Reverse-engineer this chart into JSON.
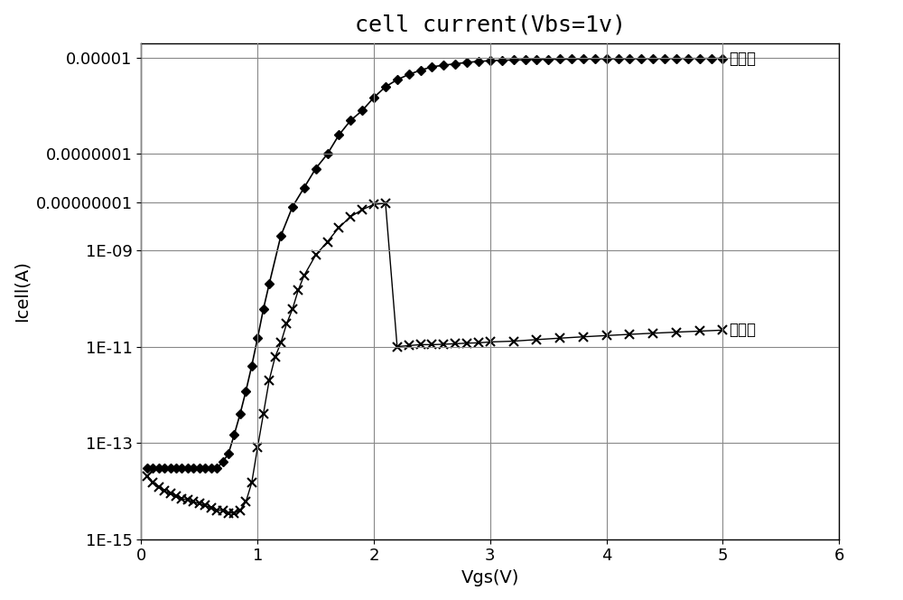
{
  "title": "cell current(Vbs=1v)",
  "xlabel": "Vgs(V)",
  "ylabel": "Icell(A)",
  "xlim": [
    0,
    6
  ],
  "ylim": [
    1e-15,
    2e-05
  ],
  "title_fontsize": 18,
  "label_fontsize": 14,
  "tick_fontsize": 13,
  "background_color": "#ffffff",
  "after_label": "编程后",
  "before_label": "编程前",
  "after_x": [
    0.05,
    0.1,
    0.15,
    0.2,
    0.25,
    0.3,
    0.35,
    0.4,
    0.45,
    0.5,
    0.55,
    0.6,
    0.65,
    0.7,
    0.75,
    0.8,
    0.85,
    0.9,
    0.95,
    1.0,
    1.05,
    1.1,
    1.2,
    1.3,
    1.4,
    1.5,
    1.6,
    1.7,
    1.8,
    1.9,
    2.0,
    2.1,
    2.2,
    2.3,
    2.4,
    2.5,
    2.6,
    2.7,
    2.8,
    2.9,
    3.0,
    3.1,
    3.2,
    3.3,
    3.4,
    3.5,
    3.6,
    3.7,
    3.8,
    3.9,
    4.0,
    4.1,
    4.2,
    4.3,
    4.4,
    4.5,
    4.6,
    4.7,
    4.8,
    4.9,
    5.0
  ],
  "after_y": [
    3e-14,
    3e-14,
    3e-14,
    3e-14,
    3e-14,
    3e-14,
    3e-14,
    3e-14,
    3e-14,
    3e-14,
    3e-14,
    3e-14,
    3e-14,
    4e-14,
    6e-14,
    1.5e-13,
    4e-13,
    1.2e-12,
    4e-12,
    1.5e-11,
    6e-11,
    2e-10,
    2e-09,
    8e-09,
    2e-08,
    5e-08,
    1e-07,
    2.5e-07,
    5e-07,
    8e-07,
    1.5e-06,
    2.5e-06,
    3.5e-06,
    4.5e-06,
    5.5e-06,
    6.5e-06,
    7e-06,
    7.5e-06,
    8e-06,
    8.4e-06,
    8.7e-06,
    8.9e-06,
    9e-06,
    9.1e-06,
    9.2e-06,
    9.3e-06,
    9.35e-06,
    9.4e-06,
    9.45e-06,
    9.5e-06,
    9.52e-06,
    9.54e-06,
    9.56e-06,
    9.58e-06,
    9.6e-06,
    9.62e-06,
    9.64e-06,
    9.66e-06,
    9.68e-06,
    9.7e-06,
    9.75e-06
  ],
  "before_x": [
    0.05,
    0.1,
    0.15,
    0.2,
    0.25,
    0.3,
    0.35,
    0.4,
    0.45,
    0.5,
    0.55,
    0.6,
    0.65,
    0.7,
    0.75,
    0.8,
    0.85,
    0.9,
    0.95,
    1.0,
    1.05,
    1.1,
    1.15,
    1.2,
    1.25,
    1.3,
    1.35,
    1.4,
    1.5,
    1.6,
    1.7,
    1.8,
    1.9,
    2.0,
    2.1,
    2.2,
    2.3,
    2.4,
    2.5,
    2.6,
    2.7,
    2.8,
    2.9,
    3.0,
    3.2,
    3.4,
    3.6,
    3.8,
    4.0,
    4.2,
    4.4,
    4.6,
    4.8,
    5.0
  ],
  "before_y": [
    2e-14,
    1.5e-14,
    1.2e-14,
    1e-14,
    9e-15,
    8e-15,
    7e-15,
    6.5e-15,
    6e-15,
    5.5e-15,
    5e-15,
    4.5e-15,
    4e-15,
    4e-15,
    3.5e-15,
    3.5e-15,
    4e-15,
    6e-15,
    1.5e-14,
    8e-14,
    4e-13,
    2e-12,
    6e-12,
    1.2e-11,
    3e-11,
    6e-11,
    1.5e-10,
    3e-10,
    8e-10,
    1.5e-09,
    3e-09,
    5e-09,
    7e-09,
    9e-09,
    9.5e-09,
    1e-11,
    1.05e-11,
    1.1e-11,
    1.1e-11,
    1.12e-11,
    1.15e-11,
    1.18e-11,
    1.2e-11,
    1.25e-11,
    1.3e-11,
    1.4e-11,
    1.5e-11,
    1.6e-11,
    1.7e-11,
    1.8e-11,
    1.9e-11,
    2e-11,
    2.1e-11,
    2.2e-11
  ],
  "ytick_positions": [
    1e-15,
    1e-13,
    1e-11,
    1e-09,
    1e-08,
    1e-07,
    1e-05
  ],
  "ytick_labels": [
    "1E-15",
    "1E-13",
    "1E-11",
    "1E-09",
    "0.00000001",
    "0.0000001",
    "0.00001"
  ]
}
